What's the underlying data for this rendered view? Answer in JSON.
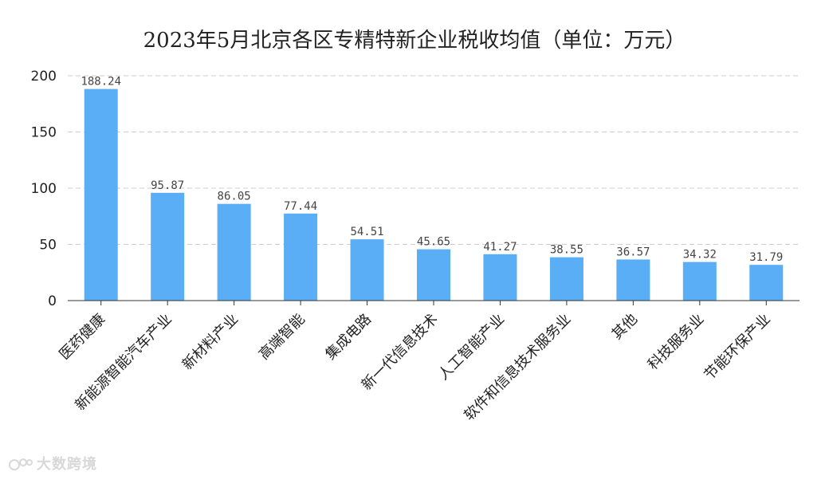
{
  "chart_data": {
    "type": "bar",
    "title": "2023年5月北京各区专精特新企业税收均值（单位：万元）",
    "categories": [
      "医药健康",
      "新能源智能汽车产业",
      "新材料产业",
      "高端智能",
      "集成电路",
      "新一代信息技术",
      "人工智能产业",
      "软件和信息技术服务业",
      "其他",
      "科技服务业",
      "节能环保产业"
    ],
    "values": [
      188.24,
      95.87,
      86.05,
      77.44,
      54.51,
      45.65,
      41.27,
      38.55,
      36.57,
      34.32,
      31.79
    ],
    "value_labels": [
      "188.24",
      "95.87",
      "86.05",
      "77.44",
      "54.51",
      "45.65",
      "41.27",
      "38.55",
      "36.57",
      "34.32",
      "31.79"
    ],
    "yticks": [
      0,
      50,
      100,
      150,
      200
    ],
    "ylim": [
      0,
      200
    ],
    "xlabel": "",
    "ylabel": "",
    "grid": true,
    "bar_color": "#5aaef5"
  },
  "watermark": {
    "text": "大数跨境"
  }
}
